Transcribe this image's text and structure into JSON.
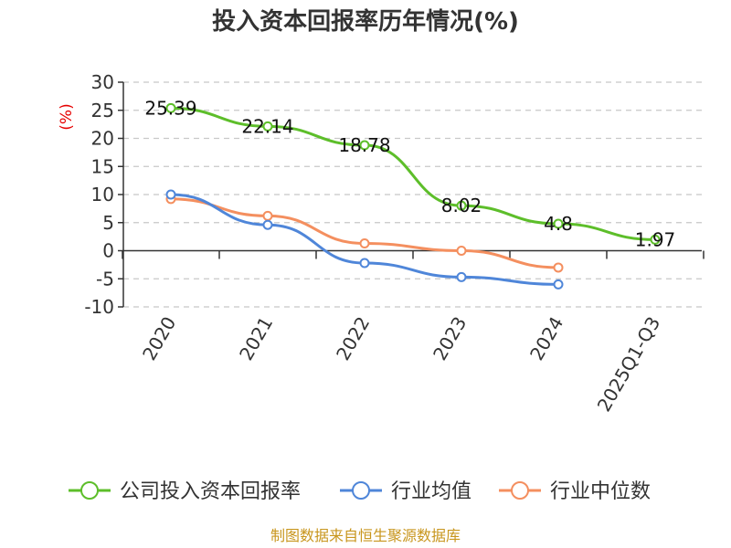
{
  "chart_data": {
    "type": "line",
    "title": "投入资本回报率历年情况(%)",
    "ylabel": "(%)",
    "categories": [
      "2020",
      "2021",
      "2022",
      "2023",
      "2024",
      "2025Q1-Q3"
    ],
    "ylim": [
      -10,
      30
    ],
    "yticks": [
      30,
      25,
      20,
      15,
      10,
      5,
      0,
      -5,
      -10
    ],
    "grid": true,
    "legend_position": "bottom",
    "series": [
      {
        "name": "公司投入资本回报率",
        "color": "#5dbe2a",
        "values": [
          25.39,
          22.14,
          18.78,
          8.02,
          4.8,
          1.97
        ],
        "labels": [
          "25.39",
          "22.14",
          "18.78",
          "8.02",
          "4.8",
          "1.97"
        ]
      },
      {
        "name": "行业均值",
        "color": "#4f86d9",
        "values": [
          10.0,
          4.6,
          -2.2,
          -4.7,
          -6.0,
          null
        ]
      },
      {
        "name": "行业中位数",
        "color": "#f48f5f",
        "values": [
          9.2,
          6.2,
          1.3,
          0.0,
          -3.0,
          null
        ]
      }
    ],
    "source": "制图数据来自恒生聚源数据库"
  }
}
